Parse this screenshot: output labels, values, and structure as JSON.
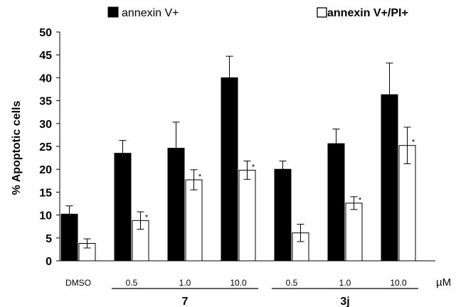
{
  "chart_data": {
    "type": "bar",
    "ylabel": "% Apoptotic cells",
    "ylim": [
      0,
      50
    ],
    "yticks": [
      0,
      5,
      10,
      15,
      20,
      25,
      30,
      35,
      40,
      45,
      50
    ],
    "categories": [
      "DMSO",
      "0.5",
      "1.0",
      "10.0",
      "0.5",
      "1.0",
      "10.0"
    ],
    "unit": "µM",
    "groups": [
      {
        "label": "7",
        "from": 1,
        "to": 3
      },
      {
        "label": "3j",
        "from": 4,
        "to": 6
      }
    ],
    "series": [
      {
        "name": "annexin V+",
        "color": "#000000",
        "values": [
          10.2,
          23.5,
          24.6,
          40.0,
          20.0,
          25.6,
          36.3
        ],
        "errors": [
          1.8,
          2.8,
          5.7,
          4.7,
          1.8,
          3.2,
          6.9
        ],
        "significant": [
          false,
          true,
          true,
          true,
          true,
          true,
          true
        ]
      },
      {
        "name": "annexin V+/PI+",
        "color": "#ffffff",
        "values": [
          3.8,
          8.8,
          17.7,
          19.8,
          6.1,
          12.6,
          25.2
        ],
        "errors": [
          1.0,
          1.9,
          2.2,
          2.0,
          1.9,
          1.4,
          4.0
        ],
        "significant": [
          false,
          true,
          true,
          true,
          false,
          true,
          true
        ]
      }
    ],
    "significance_marker": "*",
    "legend_position": "top"
  }
}
